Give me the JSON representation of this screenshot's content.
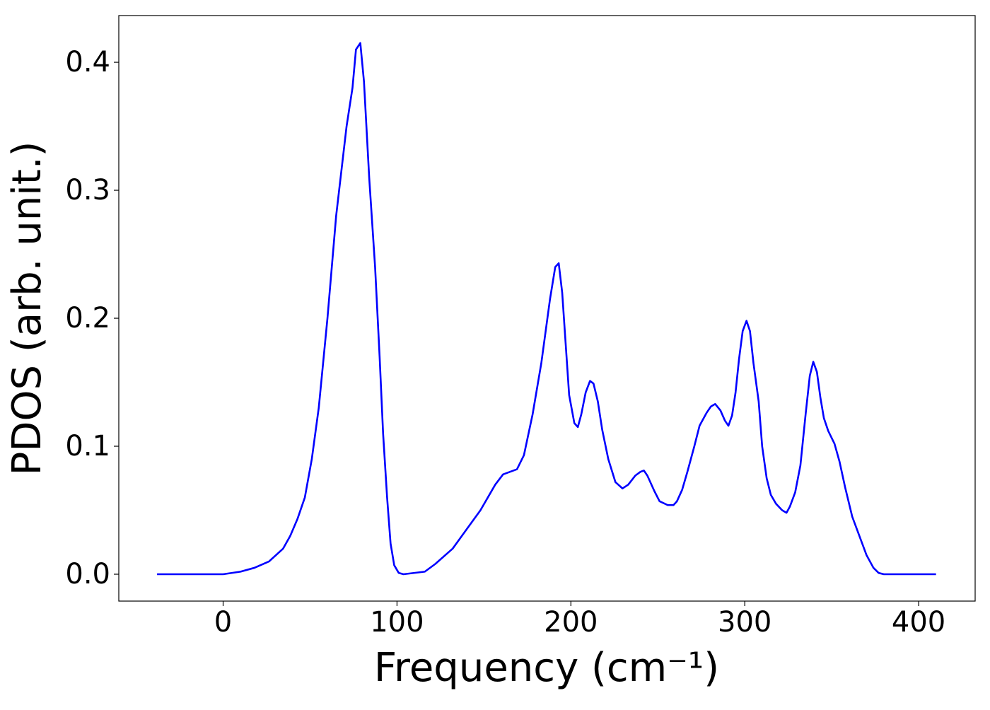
{
  "chart_data": {
    "type": "line",
    "xlabel": "Frequency (cm⁻¹)",
    "ylabel": "PDOS (arb. unit.)",
    "xlim": [
      -60,
      432.5
    ],
    "ylim": [
      -0.021,
      0.4365
    ],
    "xticks": [
      0,
      100,
      200,
      300,
      400
    ],
    "yticks": [
      {
        "value": 0,
        "label": "0.0"
      },
      0.1,
      0.2,
      0.3,
      0.4
    ],
    "grid": false,
    "series": [
      {
        "color": "#0000ff",
        "x": [
          -38,
          0,
          10,
          18,
          26.4,
          34.5,
          38.6,
          42.7,
          47,
          51,
          55,
          60,
          65,
          71,
          74.4,
          76.4,
          78.9,
          81,
          84,
          87.4,
          90,
          92,
          94.3,
          96.3,
          98.4,
          101,
          103.7,
          116,
          122,
          132,
          140,
          148,
          156.5,
          161,
          169,
          173,
          178,
          183,
          188,
          191,
          193,
          195,
          199,
          202,
          204,
          206,
          208.5,
          211,
          213,
          215.5,
          218,
          221.5,
          225.6,
          229.7,
          233,
          237,
          240,
          242,
          244,
          248,
          251,
          255.7,
          259,
          261,
          264,
          267,
          271,
          274,
          278,
          280.5,
          283,
          286,
          288.6,
          290.6,
          292.7,
          294.7,
          296.7,
          298.8,
          301,
          303,
          305,
          308,
          310,
          312.6,
          315,
          318,
          321.5,
          324,
          326,
          329,
          332,
          335,
          337.4,
          339.4,
          341.5,
          343.5,
          345.5,
          348,
          351.6,
          354.5,
          357.7,
          361.8,
          365.9,
          370,
          374,
          377,
          380,
          410
        ],
        "values": [
          0,
          0,
          0.002,
          0.005,
          0.01,
          0.02,
          0.03,
          0.043,
          0.06,
          0.09,
          0.13,
          0.2,
          0.28,
          0.35,
          0.38,
          0.41,
          0.415,
          0.385,
          0.31,
          0.24,
          0.17,
          0.11,
          0.06,
          0.024,
          0.007,
          0.001,
          0,
          0.002,
          0.008,
          0.02,
          0.035,
          0.05,
          0.07,
          0.078,
          0.082,
          0.093,
          0.125,
          0.165,
          0.215,
          0.24,
          0.243,
          0.22,
          0.14,
          0.118,
          0.115,
          0.125,
          0.142,
          0.151,
          0.149,
          0.135,
          0.113,
          0.09,
          0.072,
          0.067,
          0.07,
          0.077,
          0.08,
          0.081,
          0.077,
          0.065,
          0.057,
          0.054,
          0.054,
          0.057,
          0.066,
          0.08,
          0.1,
          0.116,
          0.126,
          0.131,
          0.133,
          0.128,
          0.12,
          0.116,
          0.124,
          0.142,
          0.168,
          0.19,
          0.198,
          0.19,
          0.165,
          0.135,
          0.1,
          0.075,
          0.062,
          0.055,
          0.05,
          0.048,
          0.053,
          0.064,
          0.085,
          0.125,
          0.155,
          0.166,
          0.158,
          0.138,
          0.122,
          0.112,
          0.102,
          0.088,
          0.068,
          0.045,
          0.03,
          0.015,
          0.005,
          0.001,
          0,
          0
        ]
      }
    ]
  }
}
